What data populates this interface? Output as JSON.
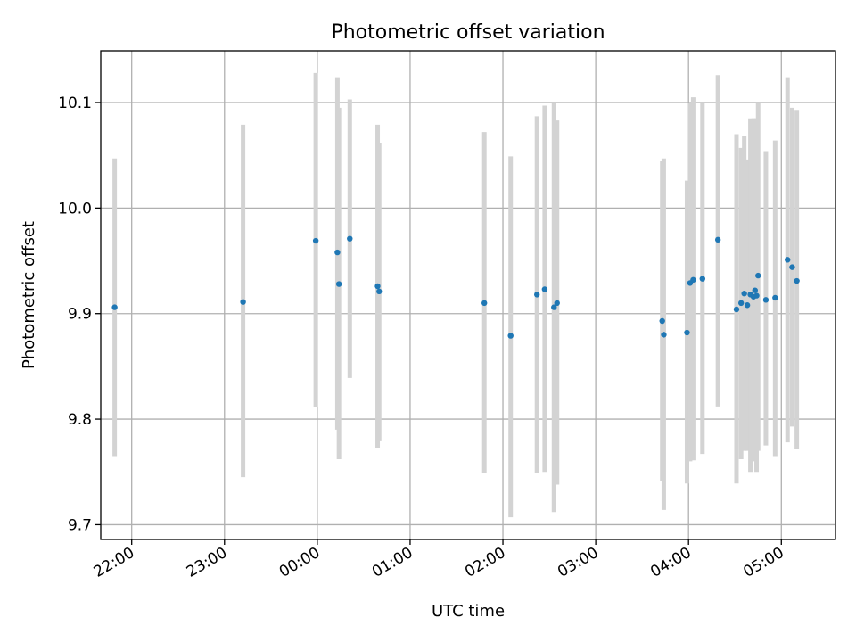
{
  "chart_data": {
    "type": "scatter",
    "title": "Photometric offset variation",
    "xlabel": "UTC time",
    "ylabel": "Photometric offset",
    "x_start": "21:40",
    "x_end": "05:35",
    "xticks": [
      "22:00",
      "23:00",
      "00:00",
      "01:00",
      "02:00",
      "03:00",
      "04:00",
      "05:00"
    ],
    "ylim": [
      9.686,
      10.149
    ],
    "yticks": [
      "9.7",
      "9.8",
      "9.9",
      "10.0",
      "10.1"
    ],
    "grid": true,
    "marker_color": "#1f77b4",
    "errorbar_color": "#d3d3d3",
    "series": [
      {
        "points": [
          {
            "x": "21:49",
            "y": 9.906,
            "lo": 9.765,
            "hi": 10.047
          },
          {
            "x": "23:12",
            "y": 9.911,
            "lo": 9.745,
            "hi": 10.079
          },
          {
            "x": "23:59",
            "y": 9.969,
            "lo": 9.811,
            "hi": 10.128
          },
          {
            "x": "00:13",
            "y": 9.958,
            "lo": 9.79,
            "hi": 10.124
          },
          {
            "x": "00:14",
            "y": 9.928,
            "lo": 9.762,
            "hi": 10.095
          },
          {
            "x": "00:21",
            "y": 9.971,
            "lo": 9.839,
            "hi": 10.103
          },
          {
            "x": "00:39",
            "y": 9.926,
            "lo": 9.773,
            "hi": 10.079
          },
          {
            "x": "00:40",
            "y": 9.921,
            "lo": 9.779,
            "hi": 10.062
          },
          {
            "x": "01:48",
            "y": 9.91,
            "lo": 9.749,
            "hi": 10.072
          },
          {
            "x": "02:05",
            "y": 9.879,
            "lo": 9.707,
            "hi": 10.049
          },
          {
            "x": "02:22",
            "y": 9.918,
            "lo": 9.749,
            "hi": 10.087
          },
          {
            "x": "02:27",
            "y": 9.923,
            "lo": 9.75,
            "hi": 10.097
          },
          {
            "x": "02:33",
            "y": 9.906,
            "lo": 9.712,
            "hi": 10.1
          },
          {
            "x": "02:35",
            "y": 9.91,
            "lo": 9.738,
            "hi": 10.083
          },
          {
            "x": "03:43",
            "y": 9.893,
            "lo": 9.741,
            "hi": 10.045
          },
          {
            "x": "03:44",
            "y": 9.88,
            "lo": 9.714,
            "hi": 10.047
          },
          {
            "x": "03:59",
            "y": 9.882,
            "lo": 9.739,
            "hi": 10.026
          },
          {
            "x": "04:01",
            "y": 9.929,
            "lo": 9.76,
            "hi": 10.1
          },
          {
            "x": "04:03",
            "y": 9.932,
            "lo": 9.761,
            "hi": 10.105
          },
          {
            "x": "04:09",
            "y": 9.933,
            "lo": 9.767,
            "hi": 10.1
          },
          {
            "x": "04:19",
            "y": 9.97,
            "lo": 9.812,
            "hi": 10.126
          },
          {
            "x": "04:31",
            "y": 9.904,
            "lo": 9.739,
            "hi": 10.07
          },
          {
            "x": "04:34",
            "y": 9.91,
            "lo": 9.762,
            "hi": 10.057
          },
          {
            "x": "04:36",
            "y": 9.919,
            "lo": 9.77,
            "hi": 10.068
          },
          {
            "x": "04:38",
            "y": 9.908,
            "lo": 9.77,
            "hi": 10.046
          },
          {
            "x": "04:40",
            "y": 9.918,
            "lo": 9.75,
            "hi": 10.085
          },
          {
            "x": "04:42",
            "y": 9.916,
            "lo": 9.76,
            "hi": 10.085
          },
          {
            "x": "04:43",
            "y": 9.922,
            "lo": 9.77,
            "hi": 10.085
          },
          {
            "x": "04:44",
            "y": 9.917,
            "lo": 9.75,
            "hi": 10.085
          },
          {
            "x": "04:45",
            "y": 9.936,
            "lo": 9.77,
            "hi": 10.1
          },
          {
            "x": "04:50",
            "y": 9.913,
            "lo": 9.775,
            "hi": 10.054
          },
          {
            "x": "04:56",
            "y": 9.915,
            "lo": 9.765,
            "hi": 10.064
          },
          {
            "x": "05:04",
            "y": 9.951,
            "lo": 9.778,
            "hi": 10.124
          },
          {
            "x": "05:07",
            "y": 9.944,
            "lo": 9.793,
            "hi": 10.095
          },
          {
            "x": "05:10",
            "y": 9.931,
            "lo": 9.772,
            "hi": 10.093
          }
        ]
      }
    ]
  }
}
